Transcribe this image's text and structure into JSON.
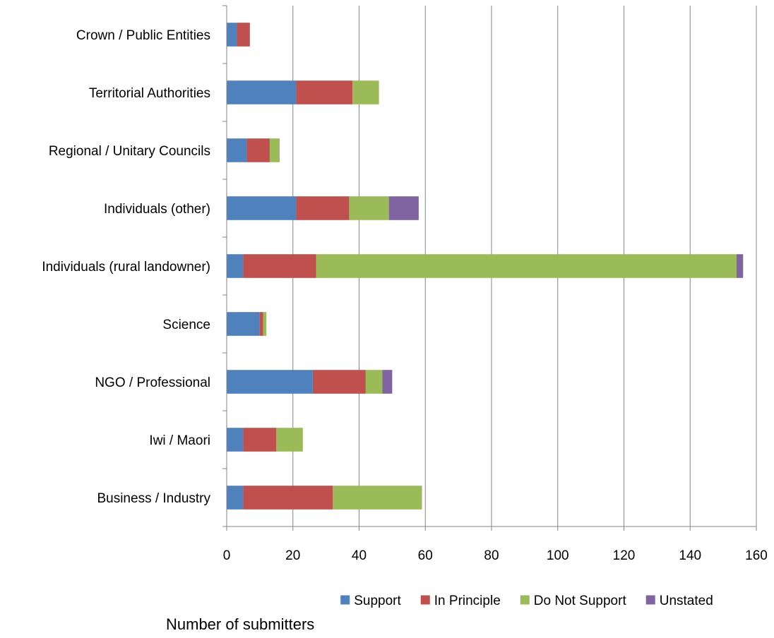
{
  "chart_data": {
    "type": "bar",
    "orientation": "horizontal",
    "stacked": true,
    "title": "",
    "xlabel": "Number of submitters",
    "ylabel": "",
    "xlim": [
      0,
      160
    ],
    "xticks": [
      0,
      20,
      40,
      60,
      80,
      100,
      120,
      140,
      160
    ],
    "grid": true,
    "legend_position": "bottom",
    "categories": [
      "Crown / Public Entities",
      "Territorial Authorities",
      "Regional / Unitary Councils",
      "Individuals  (other)",
      "Individuals  (rural landowner)",
      "Science",
      "NGO /  Professional",
      "Iwi / Maori",
      "Business / Industry"
    ],
    "series": [
      {
        "name": "Support",
        "color": "#4f81bd",
        "values": [
          3,
          21,
          6,
          21,
          5,
          10,
          26,
          5,
          5
        ]
      },
      {
        "name": "In Principle",
        "color": "#c0504d",
        "values": [
          4,
          17,
          7,
          16,
          22,
          1,
          16,
          10,
          27
        ]
      },
      {
        "name": "Do Not Support",
        "color": "#9bbb59",
        "values": [
          0,
          8,
          3,
          12,
          127,
          1,
          5,
          8,
          27
        ]
      },
      {
        "name": "Unstated",
        "color": "#8064a2",
        "values": [
          0,
          0,
          0,
          9,
          2,
          0,
          3,
          0,
          0
        ]
      }
    ]
  }
}
